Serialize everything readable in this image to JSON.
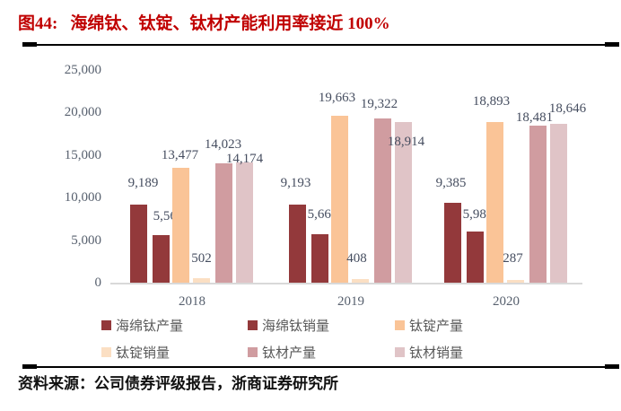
{
  "figure": {
    "label": "图44:",
    "title": "海绵钛、钛锭、钛材产能利用率接近 100%"
  },
  "source": {
    "label": "资料来源：",
    "text": "公司债券评级报告，浙商证券研究所"
  },
  "chart_data": {
    "type": "bar",
    "title": "海绵钛、钛锭、钛材产能利用率接近 100%",
    "categories": [
      "2018",
      "2019",
      "2020"
    ],
    "series": [
      {
        "name": "海绵钛产量",
        "color": "#93393B",
        "values": [
          9189,
          9193,
          9385
        ]
      },
      {
        "name": "海绵钛销量",
        "color": "#93393B",
        "values": [
          5564,
          5665,
          5984
        ]
      },
      {
        "name": "钛锭产量",
        "color": "#FAC497",
        "values": [
          13477,
          19663,
          18893
        ]
      },
      {
        "name": "钛锭销量",
        "color": "#FBDFC3",
        "values": [
          502,
          408,
          287
        ]
      },
      {
        "name": "钛材产量",
        "color": "#D09CA0",
        "values": [
          14023,
          19322,
          18481
        ]
      },
      {
        "name": "钛材销量",
        "color": "#E0C4C7",
        "values": [
          14174,
          18914,
          18646
        ]
      }
    ],
    "ylim": [
      0,
      25000
    ],
    "yticks": [
      {
        "value": 0,
        "label": "0"
      },
      {
        "value": 5000,
        "label": "5,000"
      },
      {
        "value": 10000,
        "label": "10,000"
      },
      {
        "value": 15000,
        "label": "15,000"
      },
      {
        "value": 20000,
        "label": "20,000"
      },
      {
        "value": 25000,
        "label": "25,000"
      }
    ],
    "grid": false,
    "legend_position": "bottom",
    "axis_color": "#D9D9D9",
    "label_color": "#454D5F",
    "tick_color": "#57606E",
    "legend_text_color": "#595959",
    "title_color": "#C00000"
  }
}
